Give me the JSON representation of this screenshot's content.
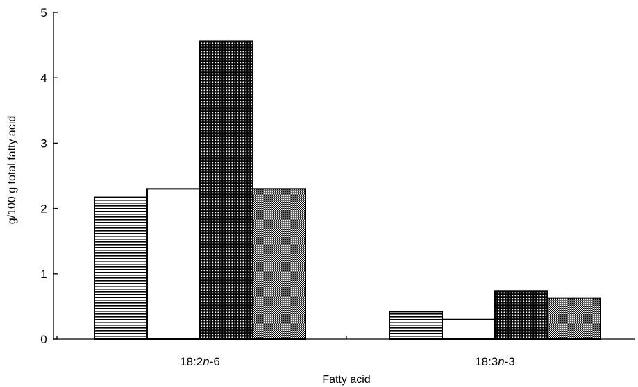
{
  "chart_data": {
    "type": "bar",
    "categories": [
      "18:2n-6",
      "18:3n-3"
    ],
    "category_labels": [
      {
        "main": "18:2",
        "italic": "n",
        "suffix": "-6"
      },
      {
        "main": "18:3",
        "italic": "n",
        "suffix": "-3"
      }
    ],
    "series": [
      {
        "pattern": "horizontal-lines",
        "values": [
          2.17,
          0.42
        ]
      },
      {
        "pattern": "solid-white",
        "values": [
          2.3,
          0.3
        ]
      },
      {
        "pattern": "dense-grid",
        "values": [
          4.56,
          0.74
        ]
      },
      {
        "pattern": "fine-crosshatch",
        "values": [
          2.3,
          0.63
        ]
      }
    ],
    "title": "",
    "xlabel": "Fatty acid",
    "ylabel": "g/100 g total fatty acid",
    "ylim": [
      0,
      5
    ],
    "yticks": [
      "0",
      "1",
      "2",
      "3",
      "4",
      "5"
    ],
    "grid": false,
    "legend": "none",
    "colors": {
      "ink": "#000000",
      "paper": "#ffffff"
    }
  }
}
